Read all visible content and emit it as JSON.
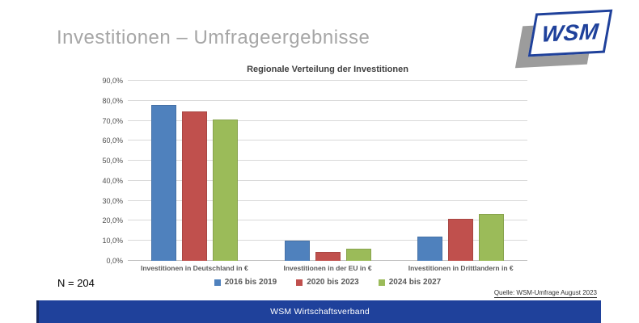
{
  "slide": {
    "title": "Investitionen – Umfrageergebnisse",
    "sample_size": "N = 204",
    "source": "Quelle: WSM-Umfrage August 2023",
    "footer": "WSM Wirtschaftsverband"
  },
  "logo": {
    "text": "WSM"
  },
  "colors": {
    "accent_blue": "#1F419B",
    "logo_blue": "#23409A",
    "title_gray": "#A6A6A6",
    "series_blue": "#4F81BD",
    "series_red": "#C0504D",
    "series_green": "#9BBB59"
  },
  "chart_data": {
    "type": "bar",
    "title": "Regionale Verteilung der Investitionen",
    "categories": [
      "Investitionen in Deutschland in €",
      "Investitionen in der EU in €",
      "Investitionen in Drittlandern in €"
    ],
    "series": [
      {
        "name": "2016 bis 2019",
        "color": "#4F81BD",
        "values": [
          78,
          10,
          12
        ]
      },
      {
        "name": "2020 bis 2023",
        "color": "#C0504D",
        "values": [
          74.5,
          4.5,
          21
        ]
      },
      {
        "name": "2024 bis 2027",
        "color": "#9BBB59",
        "values": [
          70.5,
          6,
          23.5
        ]
      }
    ],
    "xlabel": "",
    "ylabel": "",
    "ylim": [
      0,
      90
    ],
    "ytick_step": 10,
    "ytick_labels": [
      "0,0%",
      "10,0%",
      "20,0%",
      "30,0%",
      "40,0%",
      "50,0%",
      "60,0%",
      "70,0%",
      "80,0%",
      "90,0%"
    ],
    "grid": true,
    "legend_position": "bottom"
  }
}
